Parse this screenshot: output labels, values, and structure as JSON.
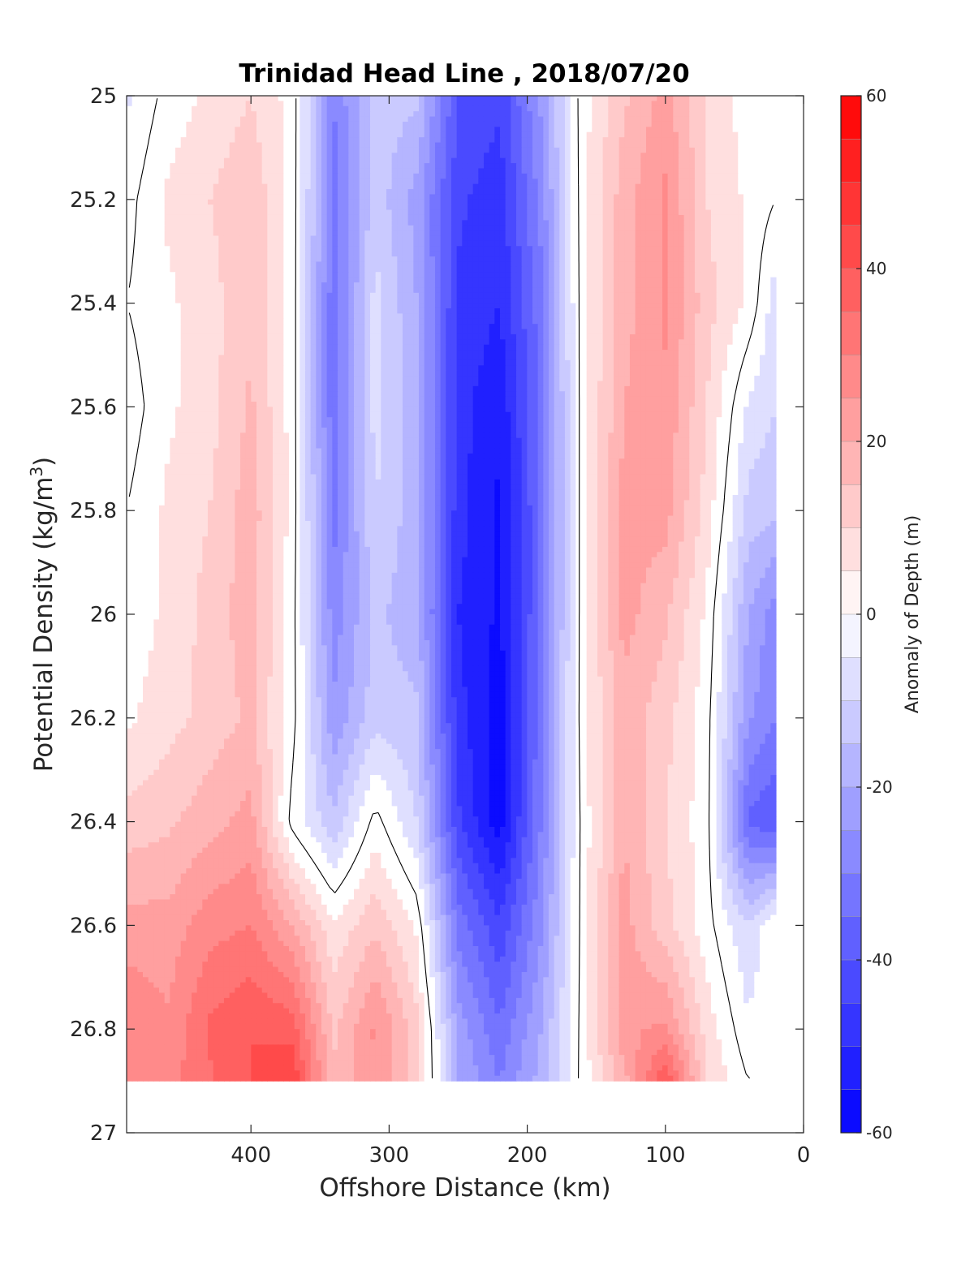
{
  "chart_data": {
    "type": "heatmap",
    "title": "Trinidad Head Line , 2018/07/20",
    "xlabel": "Offshore Distance (km)",
    "ylabel": "Potential Density (kg/m³)",
    "ylabel_base": "Potential Density (kg/m",
    "ylabel_sup": "3",
    "ylabel_tail": ")",
    "xlim": [
      490,
      0
    ],
    "ylim": [
      25,
      27
    ],
    "x_reversed": true,
    "y_reversed": true,
    "xticks": [
      "400",
      "300",
      "200",
      "100",
      "0"
    ],
    "xtick_values": [
      400,
      300,
      200,
      100,
      0
    ],
    "yticks": [
      "25",
      "25.2",
      "25.4",
      "25.6",
      "25.8",
      "26",
      "26.2",
      "26.4",
      "26.6",
      "26.8",
      "27"
    ],
    "ytick_values": [
      25,
      25.2,
      25.4,
      25.6,
      25.8,
      26,
      26.2,
      26.4,
      26.6,
      26.8,
      27
    ],
    "data_extent": {
      "x": [
        490,
        20
      ],
      "y": [
        25,
        26.9
      ]
    },
    "x": [
      490,
      460,
      430,
      400,
      370,
      340,
      310,
      280,
      250,
      220,
      190,
      160,
      130,
      100,
      70,
      40,
      20
    ],
    "y": [
      25.0,
      25.2,
      25.4,
      25.6,
      25.8,
      26.0,
      26.2,
      26.4,
      26.6,
      26.8,
      26.9
    ],
    "z": [
      [
        -6,
        2,
        6,
        10,
        3,
        -30,
        -12,
        -14,
        -40,
        -44,
        -24,
        3,
        14,
        22,
        10,
        2,
        0
      ],
      [
        -2,
        6,
        10,
        14,
        3,
        -32,
        -12,
        -22,
        -44,
        -48,
        -28,
        3,
        18,
        26,
        10,
        4,
        0
      ],
      [
        0,
        4,
        8,
        14,
        3,
        -34,
        -8,
        -20,
        -46,
        -50,
        -32,
        3,
        18,
        26,
        12,
        4,
        -8
      ],
      [
        -3,
        4,
        8,
        16,
        3,
        -34,
        -8,
        -18,
        -48,
        -54,
        -34,
        3,
        20,
        24,
        10,
        -6,
        -10
      ],
      [
        0,
        6,
        10,
        18,
        3,
        -32,
        -10,
        -18,
        -48,
        -56,
        -34,
        3,
        22,
        22,
        8,
        -12,
        -14
      ],
      [
        2,
        6,
        12,
        18,
        2,
        -28,
        -14,
        -18,
        -50,
        -56,
        -34,
        3,
        22,
        16,
        4,
        -20,
        -28
      ],
      [
        4,
        8,
        12,
        16,
        2,
        -24,
        -12,
        -14,
        -48,
        -58,
        -32,
        3,
        18,
        12,
        2,
        -24,
        -30
      ],
      [
        12,
        14,
        18,
        22,
        -2,
        -14,
        2,
        -10,
        -44,
        -58,
        -30,
        2,
        20,
        10,
        2,
        -36,
        -40
      ],
      [
        22,
        22,
        28,
        30,
        20,
        6,
        14,
        4,
        -32,
        -44,
        -26,
        2,
        22,
        12,
        2,
        -10,
        0
      ],
      [
        30,
        26,
        36,
        40,
        38,
        14,
        26,
        12,
        -22,
        -34,
        -20,
        2,
        24,
        26,
        8,
        -4,
        0
      ],
      [
        30,
        28,
        34,
        40,
        44,
        16,
        24,
        12,
        -20,
        -30,
        -18,
        2,
        18,
        40,
        10,
        0,
        0
      ]
    ],
    "zero_contour_label": "0",
    "colorbar": {
      "label": "Anomaly of Depth (m)",
      "ticks": [
        "60",
        "40",
        "20",
        "0",
        "-20",
        "-40",
        "-60"
      ],
      "tick_values": [
        60,
        40,
        20,
        0,
        -20,
        -40,
        -60
      ],
      "range": [
        -60,
        60
      ],
      "step": 5,
      "colormap": "blue-white-red",
      "colors": {
        "negative": "#0000ff",
        "zero": "#ffffff",
        "positive": "#ff0000"
      }
    },
    "grid": false
  }
}
